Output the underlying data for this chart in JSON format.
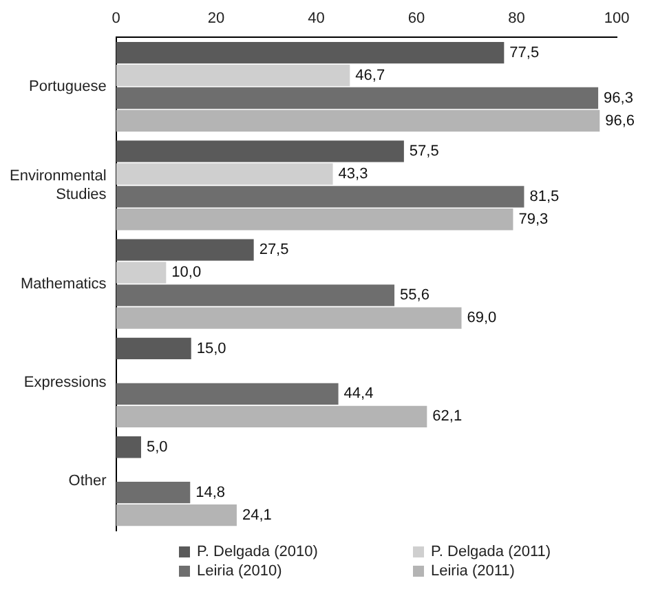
{
  "chart_data": {
    "type": "bar",
    "orientation": "horizontal",
    "categories": [
      "Portuguese",
      "Environmental Studies",
      "Mathematics",
      "Expressions",
      "Other"
    ],
    "series": [
      {
        "name": "P. Delgada (2010)",
        "color": "#5a5a5a",
        "values": [
          77.5,
          57.5,
          27.5,
          15.0,
          5.0
        ],
        "value_labels": [
          "77,5",
          "57,5",
          "27,5",
          "15,0",
          "5,0"
        ]
      },
      {
        "name": "P. Delgada (2011)",
        "color": "#cfcfcf",
        "values": [
          46.7,
          43.3,
          10.0,
          null,
          null
        ],
        "value_labels": [
          "46,7",
          "43,3",
          "10,0",
          null,
          null
        ]
      },
      {
        "name": "Leiria (2010)",
        "color": "#6e6e6e",
        "values": [
          96.3,
          81.5,
          55.6,
          44.4,
          14.8
        ],
        "value_labels": [
          "96,3",
          "81,5",
          "55,6",
          "44,4",
          "14,8"
        ]
      },
      {
        "name": "Leiria (2011)",
        "color": "#b4b4b4",
        "values": [
          96.6,
          79.3,
          69.0,
          62.1,
          24.1
        ],
        "value_labels": [
          "96,6",
          "79,3",
          "69,0",
          "62,1",
          "24,1"
        ]
      }
    ],
    "xlim": [
      0,
      100
    ],
    "xticks": [
      0,
      20,
      40,
      60,
      80,
      100
    ],
    "grid": false,
    "legend": "bottom"
  }
}
